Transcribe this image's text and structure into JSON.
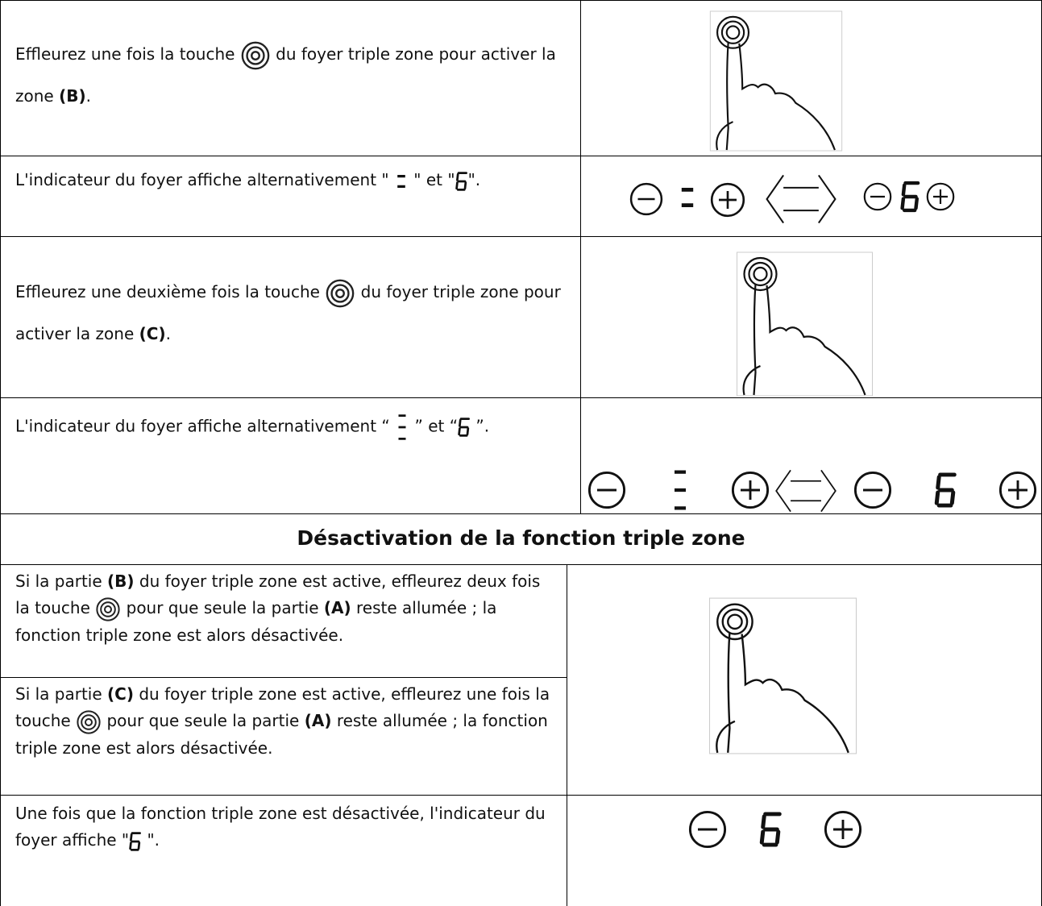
{
  "rows": [
    {
      "parts": [
        "Effleurez une fois la touche ",
        " du foyer triple zone pour activer la zone ",
        "(B)",
        "."
      ]
    },
    {
      "parts": [
        "L'indicateur du foyer affiche alternativement \" ",
        " \" et \"",
        "\"."
      ]
    },
    {
      "parts": [
        "Effleurez une deuxième fois la touche ",
        " du foyer triple zone pour activer la zone ",
        "(C)",
        "."
      ]
    },
    {
      "parts": [
        "L'indicateur du foyer affiche alternativement “ ",
        " ” et “",
        " ”."
      ]
    }
  ],
  "heading": "Désactivation de la fonction triple zone",
  "deactivation": [
    {
      "parts": [
        "Si la partie ",
        "(B)",
        " du foyer triple zone est active, effleurez deux fois la touche ",
        " pour que seule la partie ",
        "(A)",
        " reste allumée ; la fonction triple zone est alors désactivée."
      ]
    },
    {
      "parts": [
        "Si la partie ",
        "(C)",
        " du foyer triple zone est active, effleurez une fois la touche ",
        " pour que seule la partie ",
        "(A)",
        " reste allumée ; la fonction triple zone est alors désactivée."
      ]
    },
    {
      "parts": [
        "Une fois que la fonction triple zone est désactivée, l'indicateur du foyer affiche \"",
        " \"."
      ]
    }
  ]
}
